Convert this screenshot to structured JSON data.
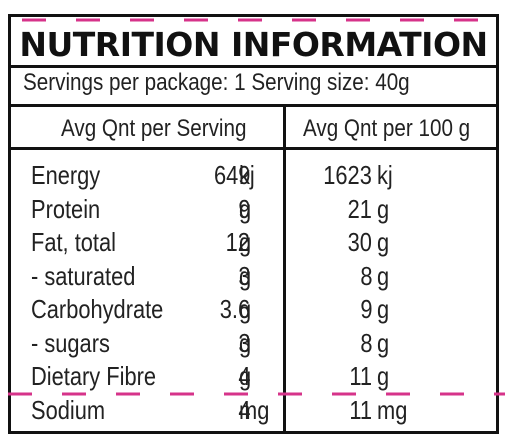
{
  "label": {
    "title": "NUTRITION INFORMATION",
    "servings_line": "Servings per package: 1 Serving size:  40g",
    "col_per_serving": "Avg Qnt per Serving",
    "col_per_100g": "Avg Qnt per 100 g"
  },
  "rows": [
    {
      "name": "Energy",
      "serving_value": "649",
      "serving_unit": "kj",
      "per100_value": "1623",
      "per100_unit": "kj"
    },
    {
      "name": "Protein",
      "serving_value": "9",
      "serving_unit": "g",
      "per100_value": "21",
      "per100_unit": "g"
    },
    {
      "name": "Fat, total",
      "serving_value": "12",
      "serving_unit": "g",
      "per100_value": "30",
      "per100_unit": "g"
    },
    {
      "name": "- saturated",
      "serving_value": "3",
      "serving_unit": "g",
      "per100_value": "8",
      "per100_unit": "g"
    },
    {
      "name": "Carbohydrate",
      "serving_value": "3.6",
      "serving_unit": "g",
      "per100_value": "9",
      "per100_unit": "g"
    },
    {
      "name": "- sugars",
      "serving_value": "3",
      "serving_unit": "g",
      "per100_value": "8",
      "per100_unit": "g"
    },
    {
      "name": "Dietary Fibre",
      "serving_value": "4",
      "serving_unit": "g",
      "per100_value": "11",
      "per100_unit": "g"
    },
    {
      "name": "Sodium",
      "serving_value": "4",
      "serving_unit": "mg",
      "per100_value": "11",
      "per100_unit": "mg"
    }
  ],
  "colors": {
    "border": "#111111",
    "text": "#222222",
    "cut_marks": "#d6338a"
  }
}
